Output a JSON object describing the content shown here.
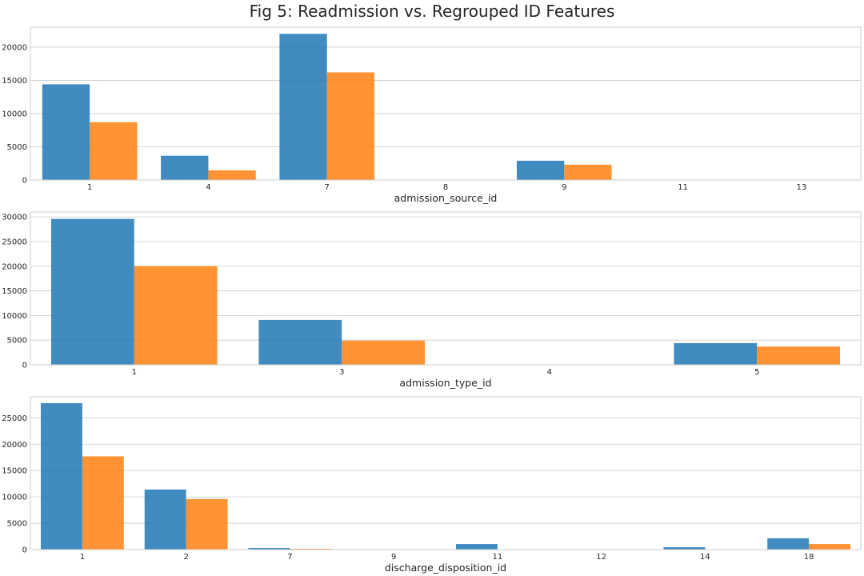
{
  "title": "Fig 5: Readmission vs. Regrouped ID Features",
  "colors": {
    "series_1": "#1f77b4",
    "series_2": "#ff7f0e",
    "grid": "#cccccc",
    "spine": "#cccccc"
  },
  "chart_data": [
    {
      "type": "bar",
      "xlabel": "admission_source_id",
      "ylabel": "",
      "categories": [
        "1",
        "4",
        "7",
        "8",
        "9",
        "11",
        "13"
      ],
      "ylim": [
        0,
        23000
      ],
      "yticks": [
        0,
        5000,
        10000,
        15000,
        20000
      ],
      "grid": true,
      "series": [
        {
          "values": [
            14400,
            3650,
            22000,
            0,
            2900,
            0,
            0
          ]
        },
        {
          "values": [
            8700,
            1450,
            16200,
            0,
            2300,
            0,
            0
          ]
        }
      ]
    },
    {
      "type": "bar",
      "xlabel": "admission_type_id",
      "ylabel": "",
      "categories": [
        "1",
        "3",
        "4",
        "5"
      ],
      "ylim": [
        0,
        31000
      ],
      "yticks": [
        0,
        5000,
        10000,
        15000,
        20000,
        25000,
        30000
      ],
      "grid": true,
      "series": [
        {
          "values": [
            29600,
            9100,
            0,
            4400
          ]
        },
        {
          "values": [
            20000,
            4900,
            0,
            3700
          ]
        }
      ]
    },
    {
      "type": "bar",
      "xlabel": "discharge_disposition_id",
      "ylabel": "",
      "categories": [
        "1",
        "2",
        "7",
        "9",
        "11",
        "12",
        "14",
        "18"
      ],
      "ylim": [
        0,
        29000
      ],
      "yticks": [
        0,
        5000,
        10000,
        15000,
        20000,
        25000
      ],
      "grid": true,
      "series": [
        {
          "values": [
            27800,
            11400,
            300,
            0,
            1050,
            0,
            450,
            2150
          ]
        },
        {
          "values": [
            17700,
            9600,
            150,
            0,
            0,
            0,
            0,
            1050
          ]
        }
      ]
    }
  ]
}
